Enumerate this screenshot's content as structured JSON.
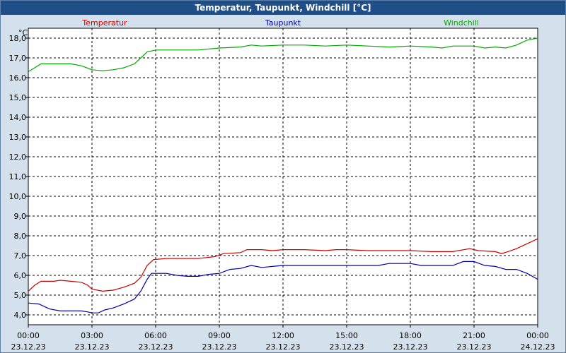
{
  "chart_data": {
    "type": "line",
    "title": "Temperatur, Taupunkt, Windchill [°C]",
    "ylabel": "°C",
    "ylim": [
      3.5,
      18.5
    ],
    "yticks": [
      "4,0",
      "5,0",
      "6,0",
      "7,0",
      "8,0",
      "9,0",
      "10,0",
      "11,0",
      "12,0",
      "13,0",
      "14,0",
      "15,0",
      "16,0",
      "17,0",
      "18,0"
    ],
    "xlim": [
      0,
      24
    ],
    "xticks": [
      {
        "time": "00:00",
        "date": "23.12.23"
      },
      {
        "time": "03:00",
        "date": "23.12.23"
      },
      {
        "time": "06:00",
        "date": "23.12.23"
      },
      {
        "time": "09:00",
        "date": "23.12.23"
      },
      {
        "time": "12:00",
        "date": "23.12.23"
      },
      {
        "time": "15:00",
        "date": "23.12.23"
      },
      {
        "time": "18:00",
        "date": "23.12.23"
      },
      {
        "time": "21:00",
        "date": "23.12.23"
      },
      {
        "time": "00:00",
        "date": "24.12.23"
      }
    ],
    "grid": true,
    "legend_position": "top",
    "series": [
      {
        "name": "Temperatur",
        "color": "#cc0000",
        "points": [
          [
            0,
            5.2
          ],
          [
            0.3,
            5.5
          ],
          [
            0.6,
            5.7
          ],
          [
            1.2,
            5.7
          ],
          [
            1.5,
            5.75
          ],
          [
            2,
            5.7
          ],
          [
            2.5,
            5.65
          ],
          [
            2.8,
            5.5
          ],
          [
            3,
            5.3
          ],
          [
            3.5,
            5.2
          ],
          [
            4,
            5.25
          ],
          [
            4.5,
            5.4
          ],
          [
            5,
            5.6
          ],
          [
            5.3,
            5.9
          ],
          [
            5.6,
            6.5
          ],
          [
            5.9,
            6.8
          ],
          [
            6.5,
            6.85
          ],
          [
            8,
            6.85
          ],
          [
            8.8,
            6.95
          ],
          [
            9.2,
            7.1
          ],
          [
            10,
            7.15
          ],
          [
            10.3,
            7.3
          ],
          [
            11,
            7.3
          ],
          [
            11.5,
            7.25
          ],
          [
            12,
            7.3
          ],
          [
            13,
            7.3
          ],
          [
            14,
            7.25
          ],
          [
            14.5,
            7.3
          ],
          [
            15,
            7.3
          ],
          [
            16,
            7.25
          ],
          [
            17,
            7.25
          ],
          [
            18,
            7.25
          ],
          [
            19,
            7.2
          ],
          [
            20,
            7.2
          ],
          [
            20.8,
            7.35
          ],
          [
            21.2,
            7.25
          ],
          [
            22,
            7.2
          ],
          [
            22.3,
            7.1
          ],
          [
            22.6,
            7.2
          ],
          [
            23,
            7.35
          ],
          [
            23.5,
            7.6
          ],
          [
            24,
            7.85
          ]
        ]
      },
      {
        "name": "Taupunkt",
        "color": "#0000aa",
        "points": [
          [
            0,
            4.6
          ],
          [
            0.5,
            4.55
          ],
          [
            1,
            4.3
          ],
          [
            1.5,
            4.2
          ],
          [
            2,
            4.2
          ],
          [
            2.5,
            4.2
          ],
          [
            2.8,
            4.15
          ],
          [
            3,
            4.1
          ],
          [
            3.3,
            4.1
          ],
          [
            3.6,
            4.25
          ],
          [
            4,
            4.35
          ],
          [
            4.5,
            4.55
          ],
          [
            5,
            4.8
          ],
          [
            5.3,
            5.2
          ],
          [
            5.6,
            5.8
          ],
          [
            5.8,
            6.1
          ],
          [
            6.5,
            6.1
          ],
          [
            7,
            6.0
          ],
          [
            7.5,
            5.95
          ],
          [
            8,
            5.95
          ],
          [
            8.5,
            6.05
          ],
          [
            9,
            6.1
          ],
          [
            9.5,
            6.3
          ],
          [
            10,
            6.35
          ],
          [
            10.5,
            6.5
          ],
          [
            11,
            6.4
          ],
          [
            11.5,
            6.45
          ],
          [
            12,
            6.5
          ],
          [
            13,
            6.5
          ],
          [
            14,
            6.5
          ],
          [
            15,
            6.5
          ],
          [
            16,
            6.5
          ],
          [
            16.5,
            6.5
          ],
          [
            17,
            6.6
          ],
          [
            18,
            6.6
          ],
          [
            18.5,
            6.5
          ],
          [
            19,
            6.5
          ],
          [
            20,
            6.5
          ],
          [
            20.5,
            6.7
          ],
          [
            21,
            6.7
          ],
          [
            21.5,
            6.5
          ],
          [
            22,
            6.45
          ],
          [
            22.5,
            6.3
          ],
          [
            23,
            6.3
          ],
          [
            23.5,
            6.1
          ],
          [
            24,
            5.8
          ]
        ]
      },
      {
        "name": "Windchill",
        "color": "#00aa00",
        "points": [
          [
            0,
            16.3
          ],
          [
            0.3,
            16.5
          ],
          [
            0.6,
            16.7
          ],
          [
            1.5,
            16.7
          ],
          [
            2,
            16.7
          ],
          [
            2.5,
            16.6
          ],
          [
            3,
            16.4
          ],
          [
            3.5,
            16.35
          ],
          [
            4,
            16.4
          ],
          [
            4.5,
            16.5
          ],
          [
            5,
            16.7
          ],
          [
            5.3,
            17.0
          ],
          [
            5.6,
            17.3
          ],
          [
            6,
            17.4
          ],
          [
            7,
            17.4
          ],
          [
            8,
            17.4
          ],
          [
            9,
            17.5
          ],
          [
            10,
            17.55
          ],
          [
            10.5,
            17.65
          ],
          [
            11,
            17.6
          ],
          [
            12,
            17.65
          ],
          [
            13,
            17.65
          ],
          [
            14,
            17.6
          ],
          [
            15,
            17.65
          ],
          [
            16,
            17.6
          ],
          [
            17,
            17.55
          ],
          [
            18,
            17.6
          ],
          [
            19,
            17.55
          ],
          [
            19.5,
            17.5
          ],
          [
            20,
            17.6
          ],
          [
            21,
            17.6
          ],
          [
            21.5,
            17.5
          ],
          [
            22,
            17.55
          ],
          [
            22.5,
            17.5
          ],
          [
            23,
            17.65
          ],
          [
            23.5,
            17.9
          ],
          [
            24,
            18.0
          ]
        ]
      }
    ]
  }
}
